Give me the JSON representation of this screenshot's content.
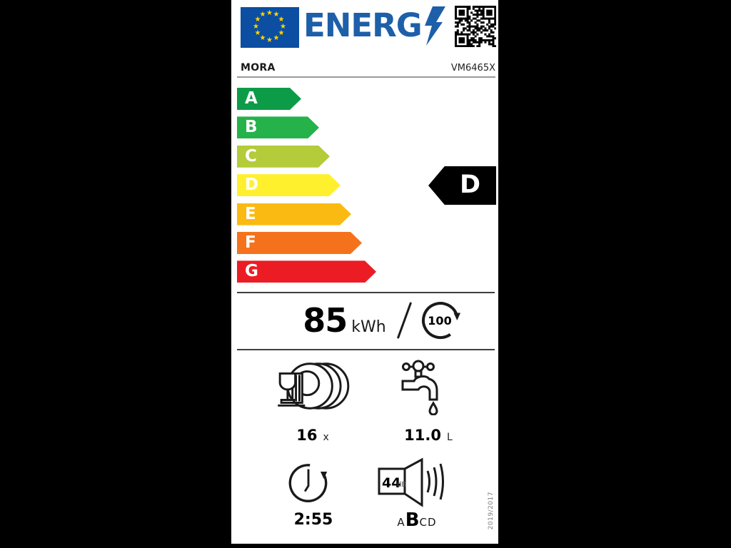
{
  "header": {
    "logo_text": "ENERG"
  },
  "brand": {
    "name": "MORA",
    "model": "VM6465X"
  },
  "energy_scale": {
    "classes": [
      {
        "letter": "A",
        "color": "#0C9C48"
      },
      {
        "letter": "B",
        "color": "#26B24B"
      },
      {
        "letter": "C",
        "color": "#B4CB3A"
      },
      {
        "letter": "D",
        "color": "#FFF02E"
      },
      {
        "letter": "E",
        "color": "#FBBA12"
      },
      {
        "letter": "F",
        "color": "#F5721D"
      },
      {
        "letter": "G",
        "color": "#EC1C24"
      }
    ],
    "current": "D"
  },
  "consumption": {
    "value": "85",
    "unit": "kWh",
    "cycles": "100"
  },
  "capacity": {
    "value": "16",
    "unit": "x"
  },
  "water": {
    "value": "11.0",
    "unit": "L"
  },
  "duration": {
    "value": "2:55"
  },
  "noise": {
    "value": "44",
    "unit": "dB",
    "scale": [
      "A",
      "B",
      "C",
      "D"
    ],
    "current": "B"
  },
  "regulation": "2019/2017",
  "colors": {
    "flag_blue": "#0B4EA2",
    "star_yellow": "#FFD500",
    "logo_blue": "#1D5FA9",
    "indicator_black": "#000000"
  }
}
